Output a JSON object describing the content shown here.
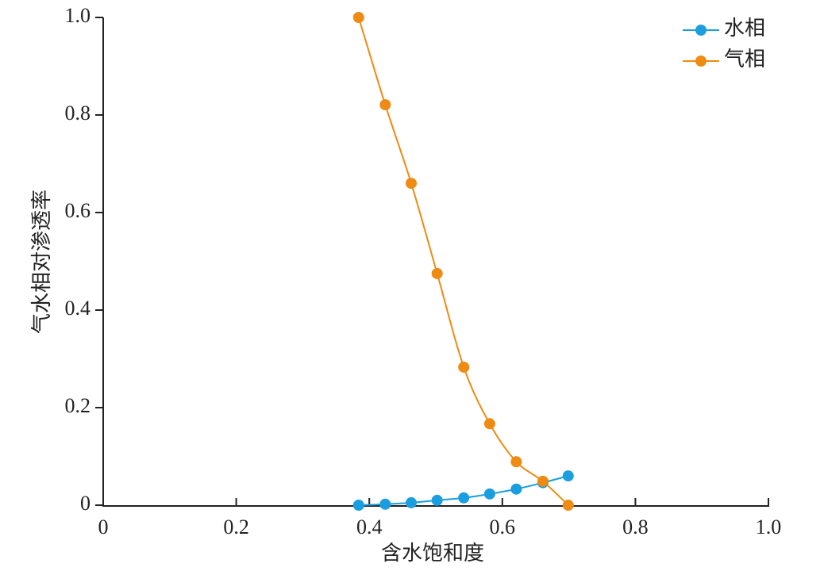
{
  "chart_data": {
    "type": "line",
    "xlabel": "含水饱和度",
    "ylabel": "气水相对渗透率",
    "x": [
      0.384,
      0.424,
      0.463,
      0.502,
      0.542,
      0.581,
      0.621,
      0.661,
      0.699
    ],
    "series": [
      {
        "name": "水相",
        "color": "#1a9ee0",
        "values": [
          0,
          0.002,
          0.005,
          0.01,
          0.015,
          0.023,
          0.033,
          0.046,
          0.06
        ]
      },
      {
        "name": "气相",
        "color": "#ef8a12",
        "values": [
          1.0,
          0.821,
          0.66,
          0.475,
          0.283,
          0.167,
          0.089,
          0.049,
          0
        ]
      }
    ],
    "xlim": [
      0,
      1
    ],
    "ylim": [
      0,
      1
    ],
    "xticks": [
      0,
      0.2,
      0.4,
      0.6,
      0.8,
      {
        "value": 1,
        "label": "1.0"
      }
    ],
    "yticks": [
      0,
      0.2,
      0.4,
      0.6,
      0.8,
      {
        "value": 1,
        "label": "1.0"
      }
    ],
    "legend": "upper-right",
    "grid": false,
    "smooth": true
  }
}
